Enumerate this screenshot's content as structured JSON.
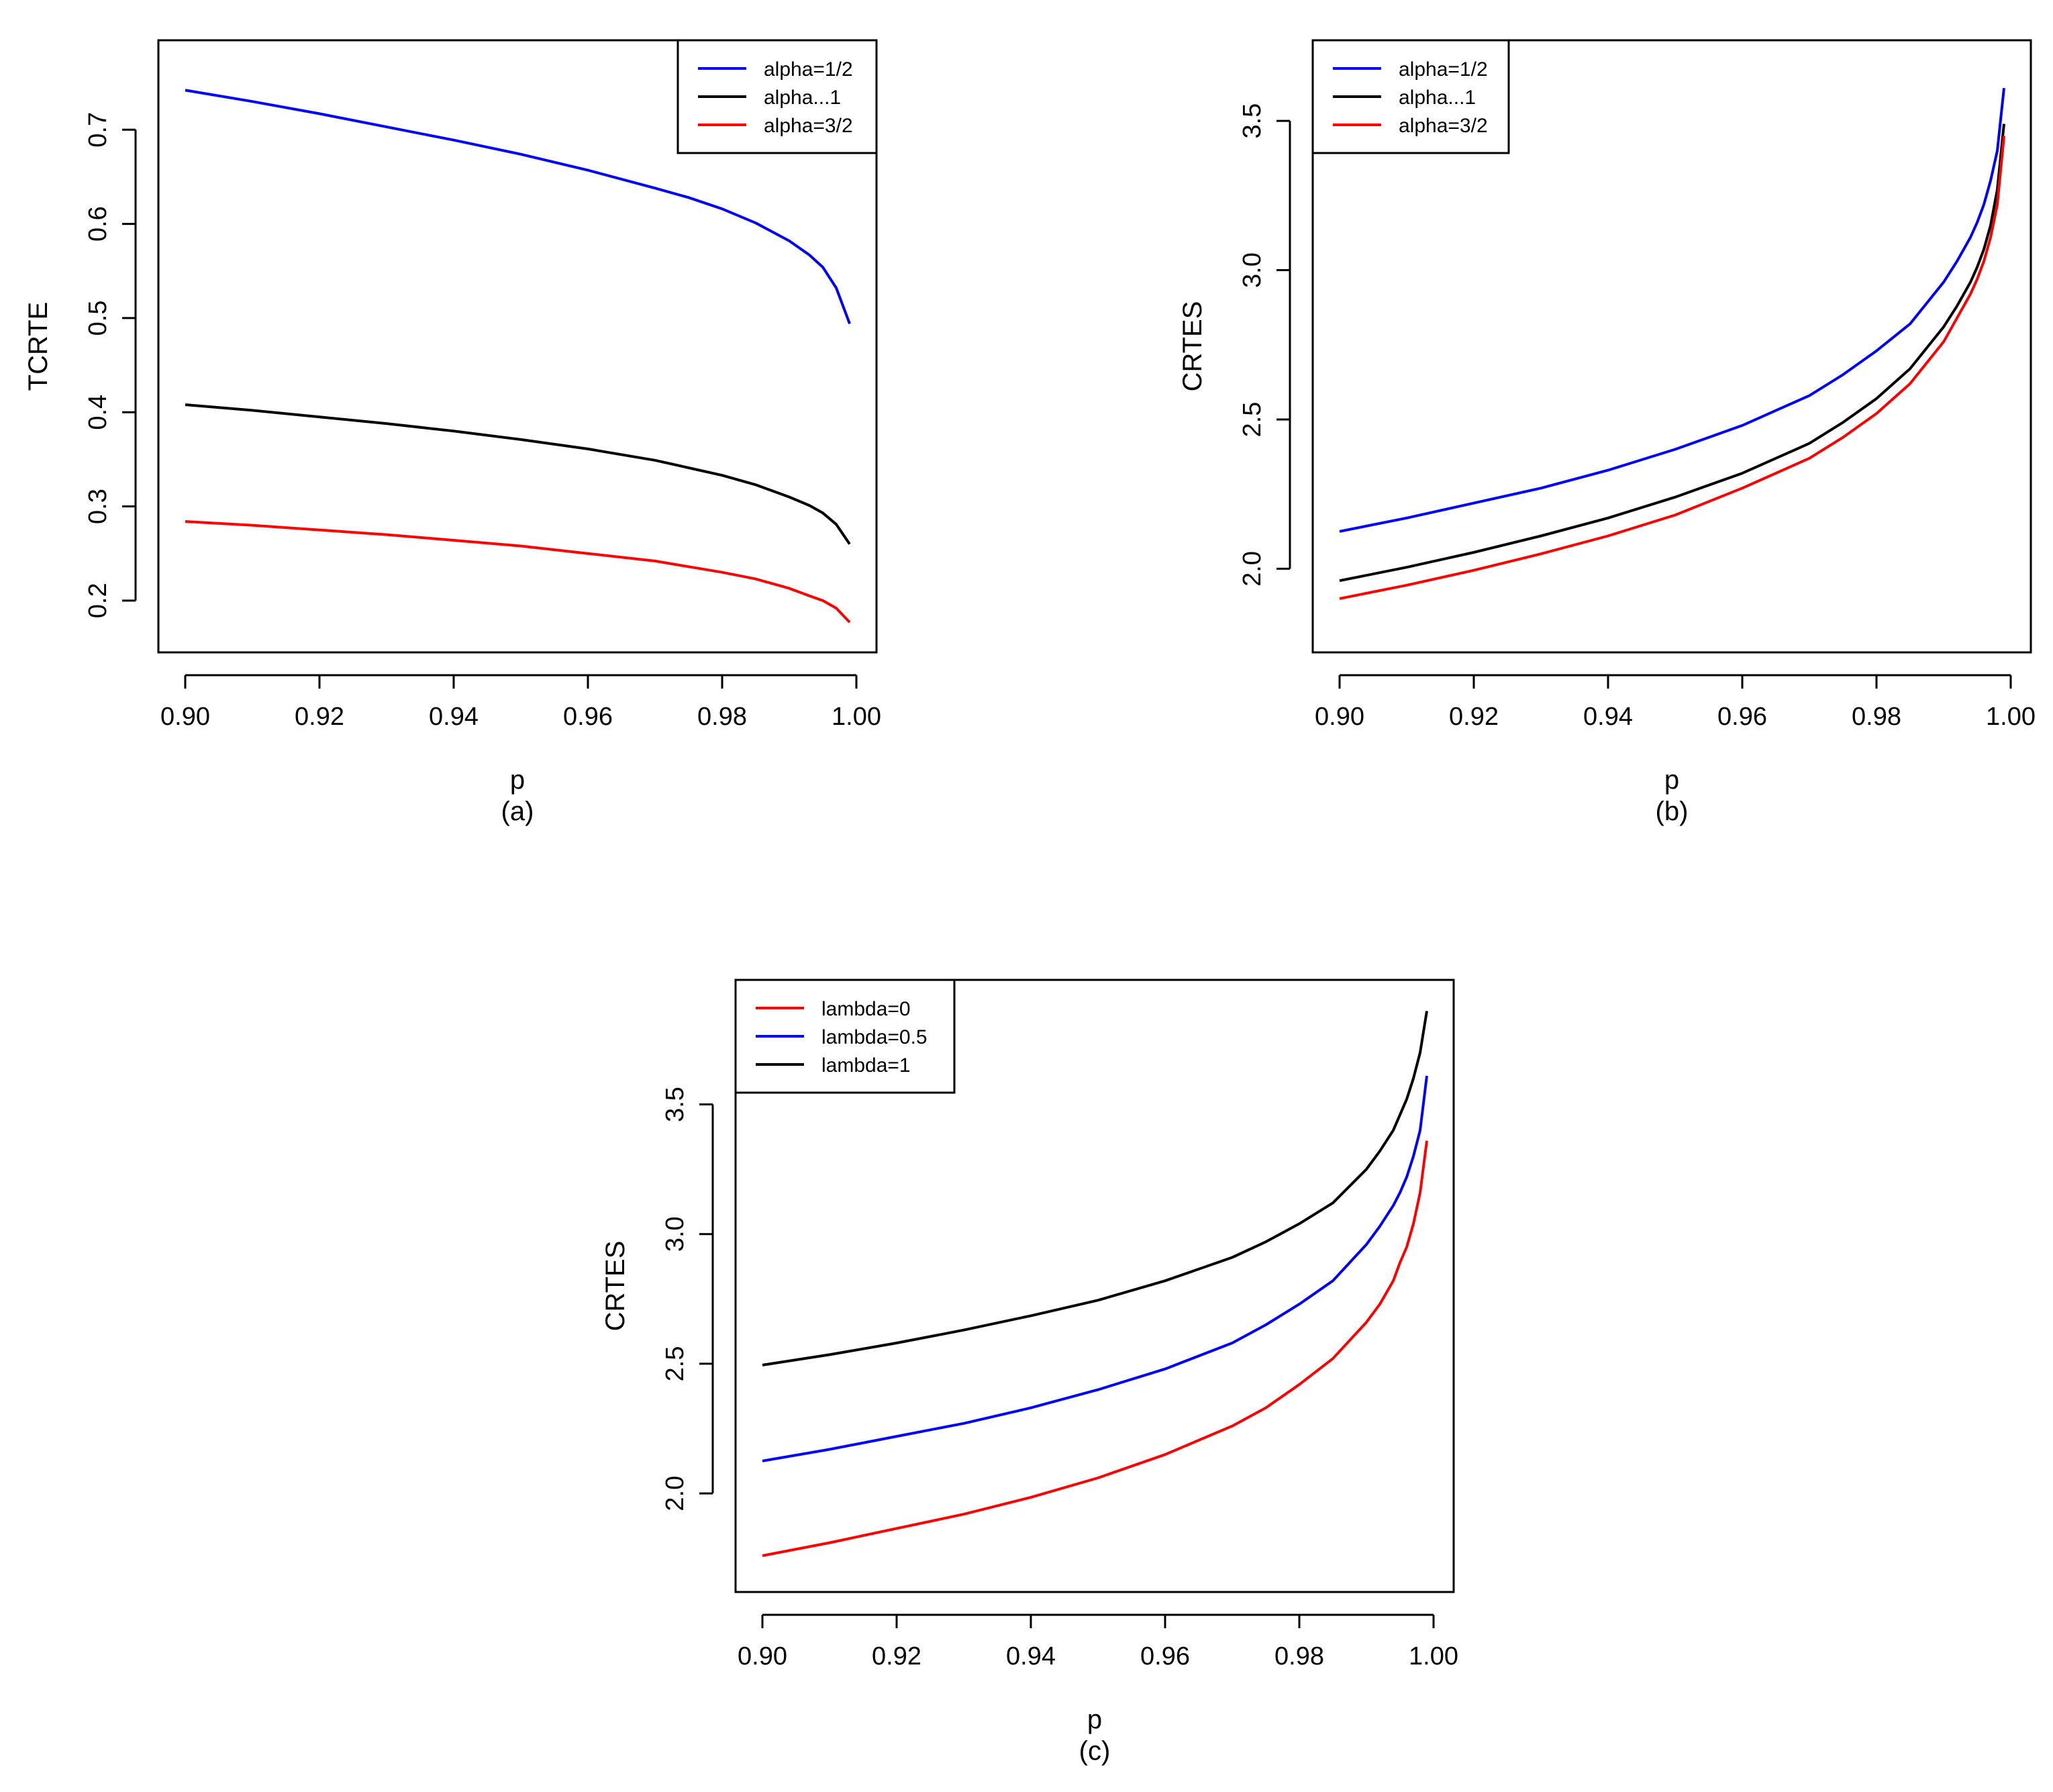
{
  "figure": {
    "panels": [
      "a",
      "b",
      "c"
    ]
  },
  "chart_data": [
    {
      "id": "a",
      "type": "line",
      "caption": "(a)",
      "xlabel": "p",
      "ylabel": "TCRTE",
      "xlim": [
        0.896,
        1.003
      ],
      "ylim": [
        0.145,
        0.795
      ],
      "xticks": [
        0.9,
        0.92,
        0.94,
        0.96,
        0.98,
        1.0
      ],
      "xtick_labels": [
        "0.90",
        "0.92",
        "0.94",
        "0.96",
        "0.98",
        "1.00"
      ],
      "yticks": [
        0.2,
        0.3,
        0.4,
        0.5,
        0.6,
        0.7
      ],
      "ytick_labels": [
        "0.2",
        "0.3",
        "0.4",
        "0.5",
        "0.6",
        "0.7"
      ],
      "legend_position": "top-right",
      "x": [
        0.9,
        0.91,
        0.92,
        0.93,
        0.94,
        0.95,
        0.96,
        0.97,
        0.975,
        0.98,
        0.985,
        0.99,
        0.993,
        0.995,
        0.997,
        0.999
      ],
      "series": [
        {
          "name": "alpha=1/2",
          "color": "#0000ff",
          "values": [
            0.742,
            0.73,
            0.717,
            0.703,
            0.689,
            0.674,
            0.657,
            0.638,
            0.628,
            0.616,
            0.601,
            0.582,
            0.567,
            0.554,
            0.532,
            0.494
          ]
        },
        {
          "name": "alpha...1",
          "color": "#000000",
          "values": [
            0.408,
            0.402,
            0.395,
            0.388,
            0.38,
            0.371,
            0.361,
            0.349,
            0.341,
            0.333,
            0.323,
            0.31,
            0.301,
            0.293,
            0.281,
            0.26
          ]
        },
        {
          "name": "alpha=3/2",
          "color": "#ff0000",
          "values": [
            0.284,
            0.28,
            0.275,
            0.27,
            0.264,
            0.258,
            0.25,
            0.242,
            0.236,
            0.23,
            0.223,
            0.213,
            0.205,
            0.2,
            0.192,
            0.177
          ]
        }
      ]
    },
    {
      "id": "b",
      "type": "line",
      "caption": "(b)",
      "xlabel": "p",
      "ylabel": "CRTES",
      "xlim": [
        0.896,
        1.003
      ],
      "ylim": [
        1.72,
        3.77
      ],
      "xticks": [
        0.9,
        0.92,
        0.94,
        0.96,
        0.98,
        1.0
      ],
      "xtick_labels": [
        "0.90",
        "0.92",
        "0.94",
        "0.96",
        "0.98",
        "1.00"
      ],
      "yticks": [
        2.0,
        2.5,
        3.0,
        3.5
      ],
      "ytick_labels": [
        "2.0",
        "2.5",
        "3.0",
        "3.5"
      ],
      "legend_position": "top-left",
      "x": [
        0.9,
        0.91,
        0.92,
        0.93,
        0.94,
        0.95,
        0.96,
        0.97,
        0.975,
        0.98,
        0.985,
        0.99,
        0.992,
        0.994,
        0.995,
        0.996,
        0.997,
        0.998,
        0.999
      ],
      "series": [
        {
          "name": "alpha=1/2",
          "color": "#0000ff",
          "values": [
            2.125,
            2.17,
            2.22,
            2.27,
            2.33,
            2.4,
            2.48,
            2.58,
            2.65,
            2.73,
            2.82,
            2.96,
            3.03,
            3.11,
            3.16,
            3.22,
            3.3,
            3.4,
            3.61
          ]
        },
        {
          "name": "alpha...1",
          "color": "#000000",
          "values": [
            1.96,
            2.005,
            2.055,
            2.11,
            2.17,
            2.24,
            2.32,
            2.42,
            2.49,
            2.57,
            2.67,
            2.81,
            2.88,
            2.96,
            3.01,
            3.07,
            3.15,
            3.27,
            3.49
          ]
        },
        {
          "name": "alpha=3/2",
          "color": "#ff0000",
          "values": [
            1.9,
            1.945,
            1.995,
            2.05,
            2.11,
            2.18,
            2.27,
            2.37,
            2.44,
            2.52,
            2.62,
            2.76,
            2.84,
            2.92,
            2.97,
            3.03,
            3.11,
            3.22,
            3.45
          ]
        }
      ]
    },
    {
      "id": "c",
      "type": "line",
      "caption": "(c)",
      "xlabel": "p",
      "ylabel": "CRTES",
      "xlim": [
        0.896,
        1.003
      ],
      "ylim": [
        1.62,
        3.98
      ],
      "xticks": [
        0.9,
        0.92,
        0.94,
        0.96,
        0.98,
        1.0
      ],
      "xtick_labels": [
        "0.90",
        "0.92",
        "0.94",
        "0.96",
        "0.98",
        "1.00"
      ],
      "yticks": [
        2.0,
        2.5,
        3.0,
        3.5
      ],
      "ytick_labels": [
        "2.0",
        "2.5",
        "3.0",
        "3.5"
      ],
      "legend_position": "top-left",
      "x": [
        0.9,
        0.91,
        0.92,
        0.93,
        0.94,
        0.95,
        0.96,
        0.97,
        0.975,
        0.98,
        0.985,
        0.99,
        0.992,
        0.994,
        0.995,
        0.996,
        0.997,
        0.998,
        0.999
      ],
      "series": [
        {
          "name": "lambda=0",
          "color": "#ff0000",
          "values": [
            1.76,
            1.81,
            1.865,
            1.92,
            1.985,
            2.06,
            2.15,
            2.26,
            2.33,
            2.42,
            2.52,
            2.66,
            2.73,
            2.82,
            2.89,
            2.95,
            3.04,
            3.16,
            3.36
          ]
        },
        {
          "name": "lambda=0.5",
          "color": "#0000ff",
          "values": [
            2.125,
            2.17,
            2.22,
            2.27,
            2.33,
            2.4,
            2.48,
            2.58,
            2.65,
            2.73,
            2.82,
            2.96,
            3.03,
            3.11,
            3.16,
            3.22,
            3.3,
            3.4,
            3.61
          ]
        },
        {
          "name": "lambda=1",
          "color": "#000000",
          "values": [
            2.495,
            2.535,
            2.58,
            2.63,
            2.685,
            2.745,
            2.82,
            2.91,
            2.97,
            3.04,
            3.12,
            3.25,
            3.32,
            3.4,
            3.46,
            3.52,
            3.6,
            3.7,
            3.86
          ]
        }
      ]
    }
  ]
}
